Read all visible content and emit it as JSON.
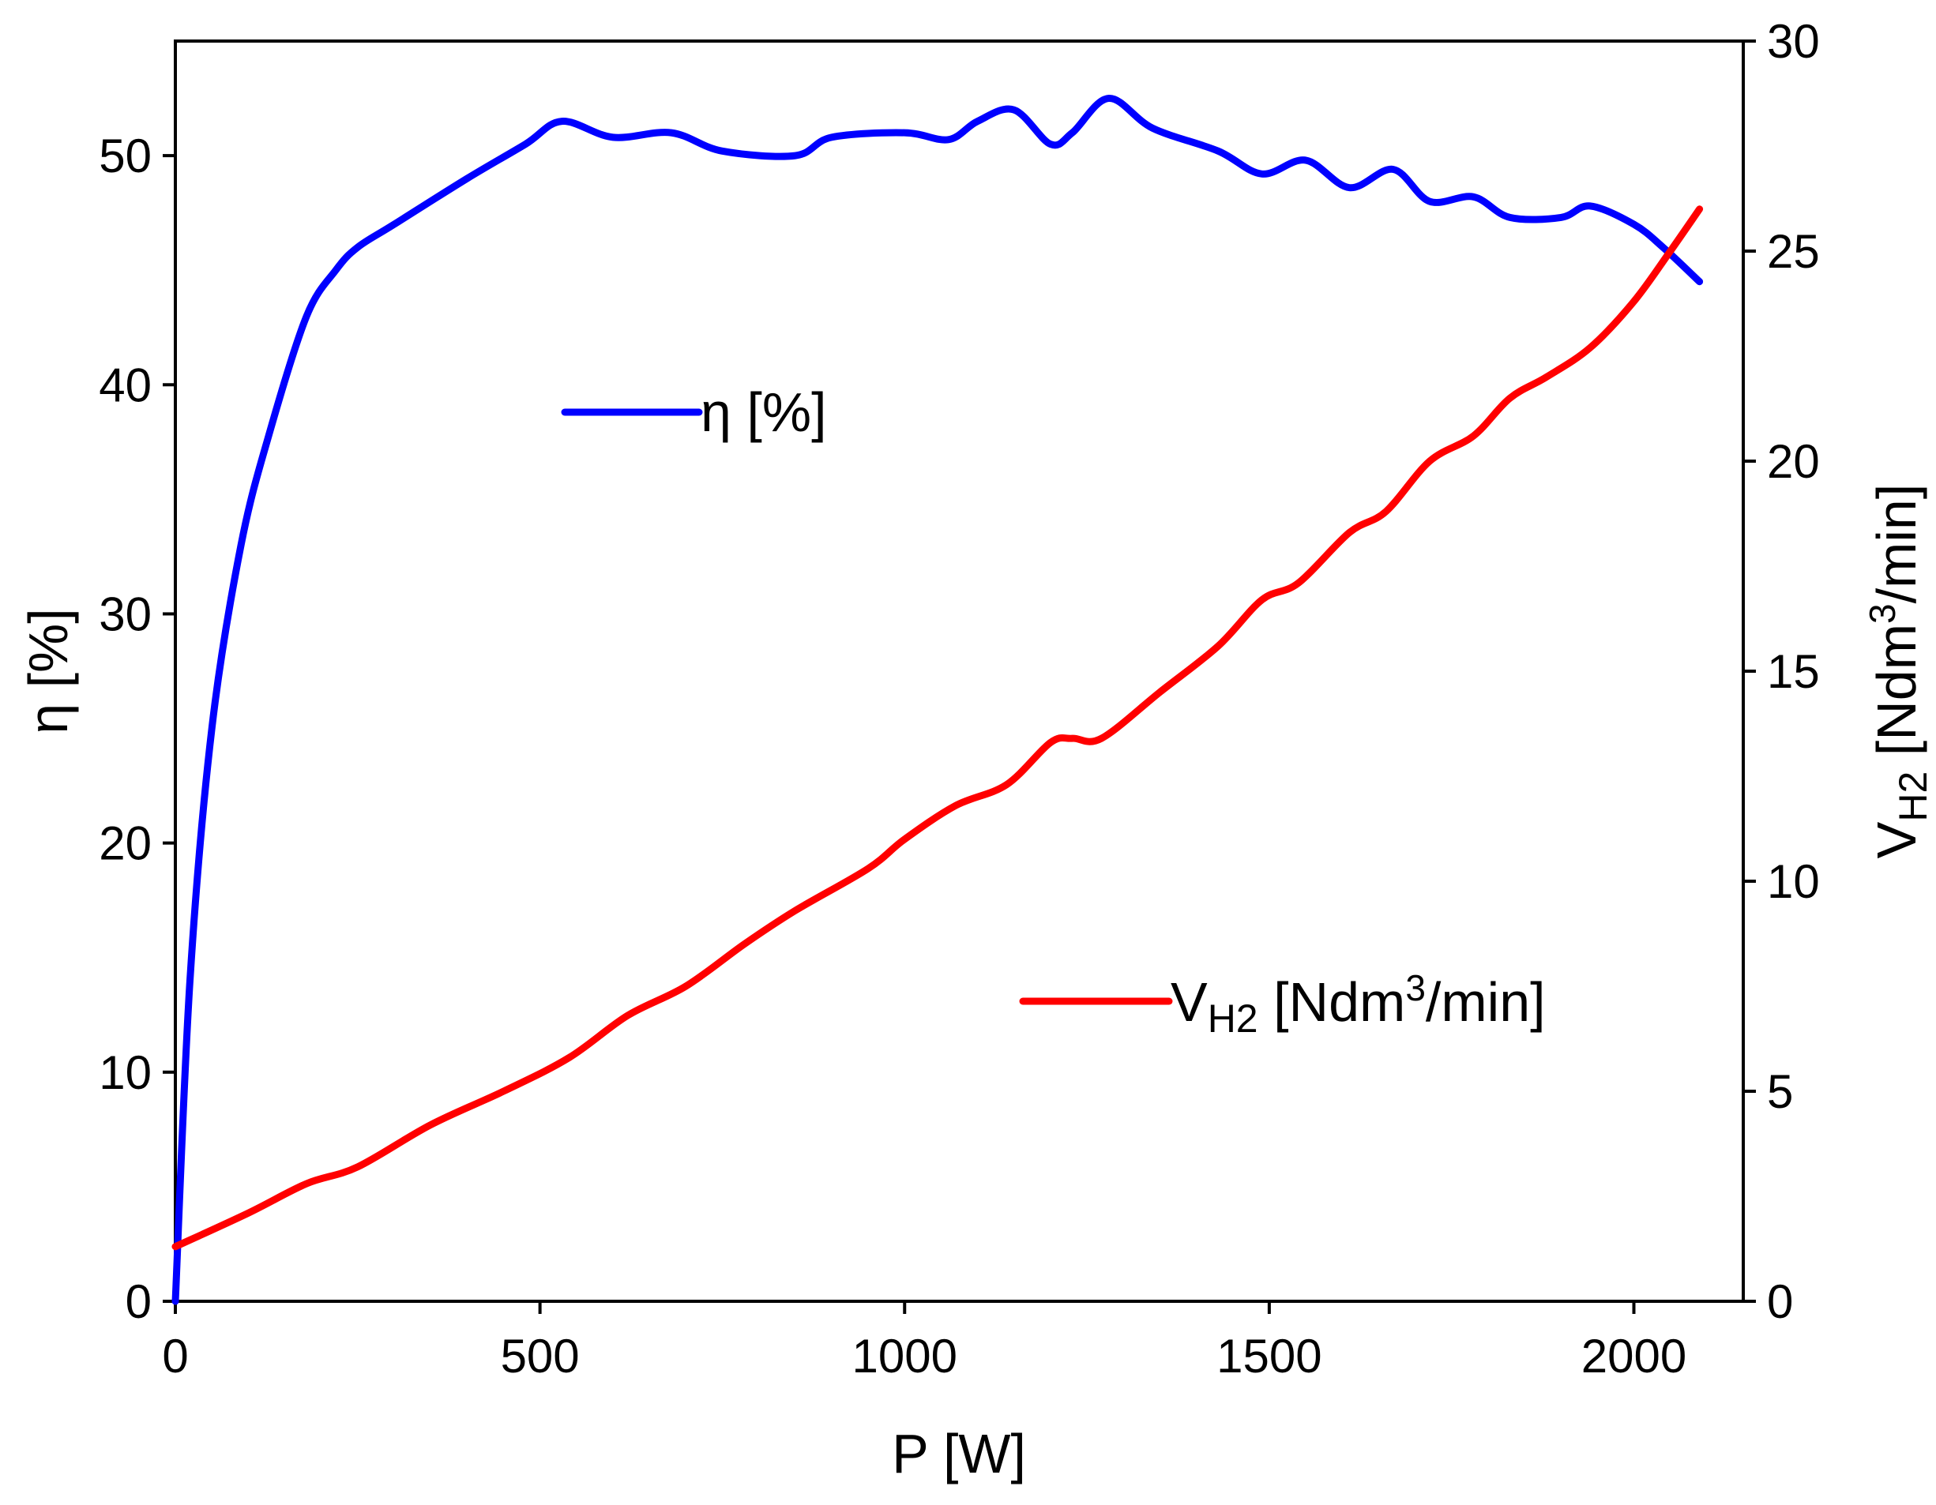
{
  "chart_data": {
    "type": "line",
    "title": "",
    "xlabel": "P [W]",
    "ylabel_left": "η [%]",
    "ylabel_right_parts": {
      "base": "V",
      "sub": "H2",
      "text1": " [Ndm",
      "sup": "3",
      "text2": "/min]"
    },
    "xlim": [
      0,
      2150
    ],
    "ylim_left": [
      0,
      55
    ],
    "ylim_right": [
      0,
      30
    ],
    "xticks": [
      0,
      500,
      1000,
      1500,
      2000
    ],
    "yticks_left": [
      0,
      10,
      20,
      30,
      40,
      50
    ],
    "yticks_right": [
      0,
      5,
      10,
      15,
      20,
      25,
      30
    ],
    "grid": false,
    "series": [
      {
        "name": "η [%]",
        "axis": "left",
        "color": "#0000ff",
        "x": [
          0,
          20,
          50,
          90,
          130,
          180,
          220,
          250,
          300,
          400,
          480,
          530,
          600,
          680,
          750,
          850,
          900,
          1000,
          1060,
          1100,
          1150,
          1200,
          1230,
          1280,
          1340,
          1430,
          1490,
          1550,
          1610,
          1670,
          1720,
          1780,
          1830,
          1900,
          1940,
          2000,
          2040,
          2090
        ],
        "y": [
          0,
          14,
          25,
          33,
          38,
          43,
          45,
          46,
          47,
          49,
          50.5,
          51.5,
          50.8,
          51,
          50.2,
          50,
          50.8,
          51,
          50.7,
          51.5,
          52,
          50.5,
          51,
          52.5,
          51.2,
          50.2,
          49.2,
          49.8,
          48.6,
          49.4,
          48,
          48.2,
          47.3,
          47.3,
          47.8,
          47,
          46,
          44.5
        ]
      },
      {
        "name": "V_H2 [Ndm³/min]",
        "axis": "right",
        "color": "#ff0000",
        "x": [
          0,
          100,
          180,
          250,
          350,
          450,
          540,
          620,
          700,
          780,
          850,
          950,
          1000,
          1070,
          1140,
          1200,
          1230,
          1270,
          1350,
          1430,
          1490,
          1540,
          1610,
          1660,
          1720,
          1780,
          1830,
          1880,
          1940,
          2000,
          2050,
          2090
        ],
        "y": [
          1.3,
          2.1,
          2.8,
          3.2,
          4.2,
          5.0,
          5.8,
          6.8,
          7.5,
          8.5,
          9.3,
          10.3,
          11.0,
          11.8,
          12.3,
          13.3,
          13.4,
          13.4,
          14.5,
          15.6,
          16.7,
          17.1,
          18.3,
          18.8,
          20.0,
          20.6,
          21.5,
          22.0,
          22.7,
          23.8,
          25.0,
          26.0
        ]
      }
    ],
    "legend": [
      {
        "text": "η [%]",
        "color": "#0000ff"
      },
      {
        "color": "#ff0000",
        "parts": {
          "base": "V",
          "sub": "H2",
          "text1": " [Ndm",
          "sup": "3",
          "text2": "/min]"
        }
      }
    ]
  }
}
